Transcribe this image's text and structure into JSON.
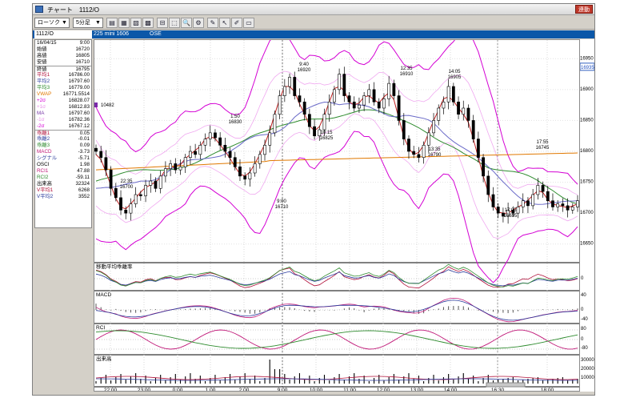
{
  "window": {
    "title": "チャート　1112/O",
    "link_button": "連動"
  },
  "toolbar": {
    "chart_type": "ローソク",
    "interval": "5分足",
    "icons": [
      "bar-chart-icon",
      "table-icon",
      "pointer-icon",
      "grid-icon",
      "crosshair-icon",
      "cursor-icon",
      "zoom-icon",
      "tool-icon",
      "pen-icon",
      "select-icon",
      "edit-icon",
      "folder-icon"
    ]
  },
  "header": {
    "symbol": "1112/O",
    "description": "225 mini 1606",
    "exchange": "OSE"
  },
  "sidebar": [
    {
      "label": "16/04/15",
      "value": "9:00",
      "color": "#000000"
    },
    {
      "label": "始値",
      "value": "16720",
      "color": "#000000"
    },
    {
      "label": "高値",
      "value": "16805",
      "color": "#000000"
    },
    {
      "label": "安値",
      "value": "16710",
      "color": "#000000"
    },
    {
      "label": "終値",
      "value": "16795",
      "color": "#000000",
      "sep": true
    },
    {
      "label": "平均1",
      "value": "16786.00",
      "color": "#b0103a"
    },
    {
      "label": "平均2",
      "value": "16797.60",
      "color": "#2b3b9c"
    },
    {
      "label": "平均3",
      "value": "16779.00",
      "color": "#2e8b2e"
    },
    {
      "label": "VWAP",
      "value": "16771.5514",
      "color": "#e07800"
    },
    {
      "label": "+2σ",
      "value": "16828.07",
      "color": "#d400d4"
    },
    {
      "label": "+1σ",
      "value": "16812.83",
      "color": "#e890e8"
    },
    {
      "label": "MA",
      "value": "16797.60",
      "color": "#7a3aa8"
    },
    {
      "label": "-1σ",
      "value": "16782.36",
      "color": "#e890e8"
    },
    {
      "label": "-2σ",
      "value": "16767.12",
      "color": "#d400d4"
    },
    {
      "label": "乖離1",
      "value": "0.05",
      "color": "#b0103a",
      "sep": true
    },
    {
      "label": "乖離2",
      "value": "-0.01",
      "color": "#2b3b9c"
    },
    {
      "label": "乖離3",
      "value": "0.09",
      "color": "#2e8b2e"
    },
    {
      "label": "MACD",
      "value": "-3.73",
      "color": "#c01878"
    },
    {
      "label": "シグナル",
      "value": "-5.71",
      "color": "#2b3b9c"
    },
    {
      "label": "OSCI",
      "value": "1.98",
      "color": "#000000"
    },
    {
      "label": "RCI1",
      "value": "47.88",
      "color": "#c01878"
    },
    {
      "label": "RCI2",
      "value": "-59.11",
      "color": "#2e8b2e"
    },
    {
      "label": "出来高",
      "value": "32324",
      "color": "#000000"
    },
    {
      "label": "V平均1",
      "value": "6268",
      "color": "#b0103a"
    },
    {
      "label": "V平均2",
      "value": "3552",
      "color": "#2b3b9c"
    }
  ],
  "main_chart": {
    "current_price": "16935",
    "y_ticks": [
      "16950",
      "16900",
      "16850",
      "16800",
      "16750",
      "16700",
      "16650"
    ],
    "marker_label": "10482",
    "annotations": [
      {
        "time": "22:35",
        "price": "16700"
      },
      {
        "time": "1:50",
        "price": "16830"
      },
      {
        "time": "9:00",
        "price": "16710"
      },
      {
        "time": "9:40",
        "price": "16920"
      },
      {
        "time": "10:15",
        "price": "16825"
      },
      {
        "time": "12:35",
        "price": "16910"
      },
      {
        "time": "13:35",
        "price": "16790"
      },
      {
        "time": "14:05",
        "price": "16905"
      },
      {
        "time": "17:05",
        "price": "16695"
      },
      {
        "time": "17:55",
        "price": "16745"
      }
    ]
  },
  "panels": [
    {
      "title": "移動平均乖離率",
      "ticks": [
        "0"
      ]
    },
    {
      "title": "MACD",
      "ticks": [
        "40",
        "0",
        "-40"
      ]
    },
    {
      "title": "RCI",
      "ticks": [
        "80",
        "0",
        "-80"
      ]
    },
    {
      "title": "出来高",
      "ticks": [
        "30000",
        "20000",
        "10000"
      ]
    }
  ],
  "x_axis": {
    "labels": [
      "22:00",
      "23:00",
      "0:00",
      "1:00",
      "2:00",
      "9:00",
      "10:00",
      "11:00",
      "12:00",
      "13:00",
      "14:00",
      "16:30",
      "18:00"
    ]
  }
}
